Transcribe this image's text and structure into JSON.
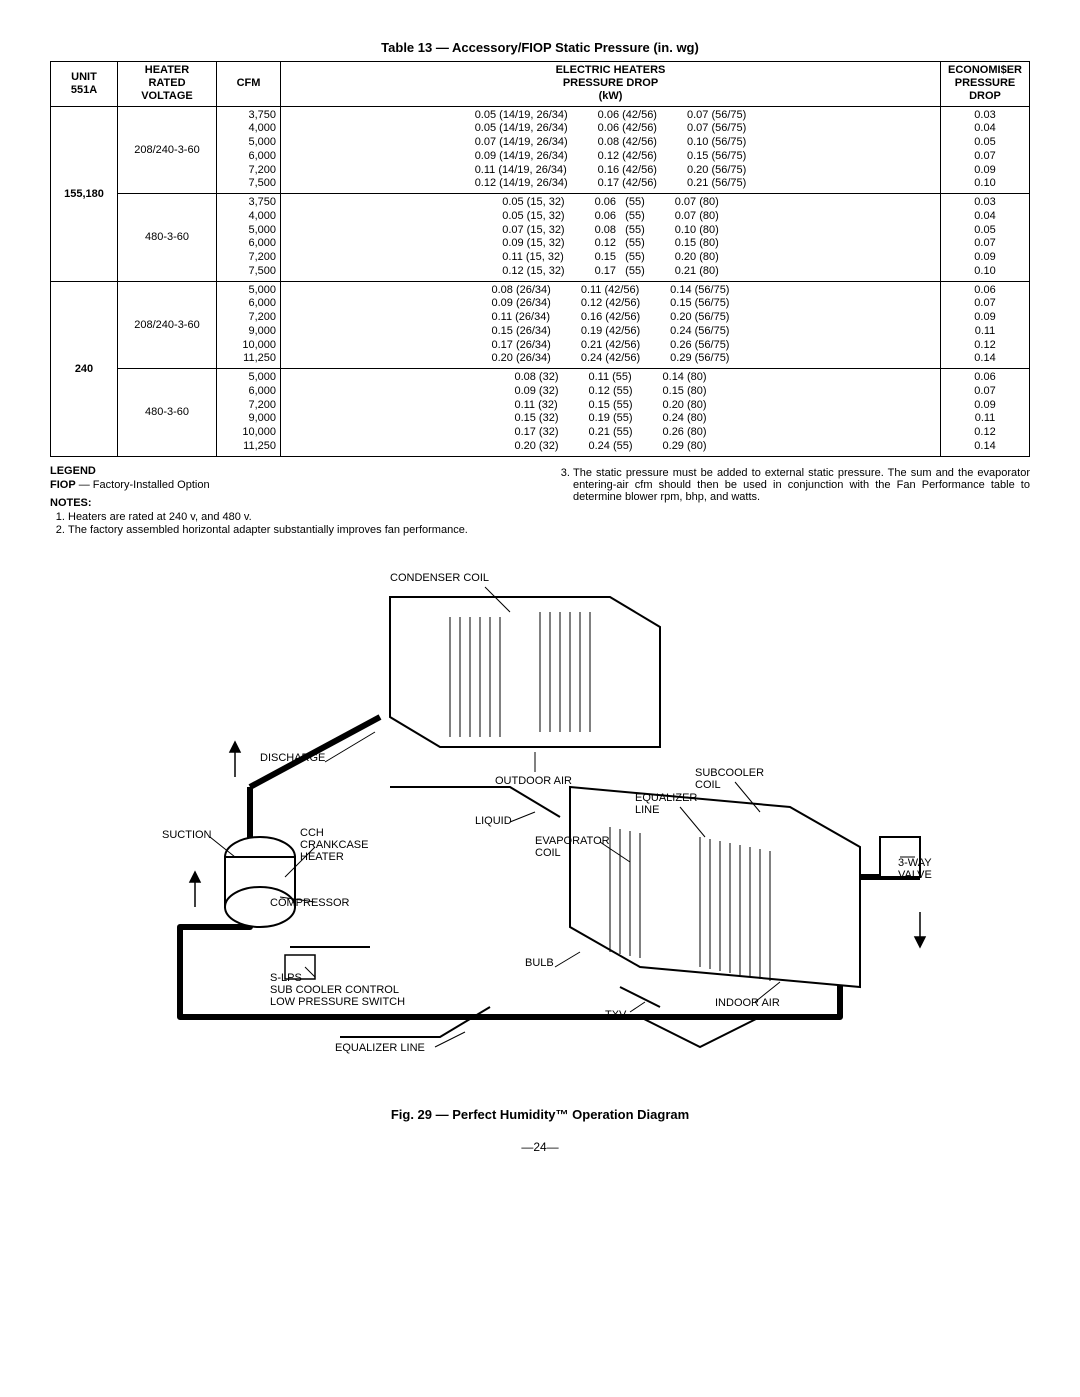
{
  "table": {
    "title": "Table 13 — Accessory/FIOP Static Pressure (in. wg)",
    "headers": {
      "unit": "UNIT\n551A",
      "heater_voltage": "HEATER\nRATED\nVOLTAGE",
      "cfm": "CFM",
      "electric_heaters": "ELECTRIC HEATERS\nPRESSURE DROP\n(kW)",
      "economiser": "ECONOMI$ER\nPRESSURE\nDROP"
    },
    "groups": [
      {
        "unit": "155,180",
        "blocks": [
          {
            "voltage": "208/240-3-60",
            "rows": [
              {
                "cfm": "3,750",
                "pd": [
                  "0.05 (14/19, 26/34)",
                  "0.06 (42/56)",
                  "0.07 (56/75)"
                ],
                "econ": "0.03"
              },
              {
                "cfm": "4,000",
                "pd": [
                  "0.05 (14/19, 26/34)",
                  "0.06 (42/56)",
                  "0.07 (56/75)"
                ],
                "econ": "0.04"
              },
              {
                "cfm": "5,000",
                "pd": [
                  "0.07 (14/19, 26/34)",
                  "0.08 (42/56)",
                  "0.10 (56/75)"
                ],
                "econ": "0.05"
              },
              {
                "cfm": "6,000",
                "pd": [
                  "0.09 (14/19, 26/34)",
                  "0.12 (42/56)",
                  "0.15 (56/75)"
                ],
                "econ": "0.07"
              },
              {
                "cfm": "7,200",
                "pd": [
                  "0.11 (14/19, 26/34)",
                  "0.16 (42/56)",
                  "0.20 (56/75)"
                ],
                "econ": "0.09"
              },
              {
                "cfm": "7,500",
                "pd": [
                  "0.12 (14/19, 26/34)",
                  "0.17 (42/56)",
                  "0.21 (56/75)"
                ],
                "econ": "0.10"
              }
            ]
          },
          {
            "voltage": "480-3-60",
            "rows": [
              {
                "cfm": "3,750",
                "pd": [
                  "0.05 (15, 32)",
                  "0.06   (55)",
                  "0.07 (80)"
                ],
                "econ": "0.03"
              },
              {
                "cfm": "4,000",
                "pd": [
                  "0.05 (15, 32)",
                  "0.06   (55)",
                  "0.07 (80)"
                ],
                "econ": "0.04"
              },
              {
                "cfm": "5,000",
                "pd": [
                  "0.07 (15, 32)",
                  "0.08   (55)",
                  "0.10 (80)"
                ],
                "econ": "0.05"
              },
              {
                "cfm": "6,000",
                "pd": [
                  "0.09 (15, 32)",
                  "0.12   (55)",
                  "0.15 (80)"
                ],
                "econ": "0.07"
              },
              {
                "cfm": "7,200",
                "pd": [
                  "0.11 (15, 32)",
                  "0.15   (55)",
                  "0.20 (80)"
                ],
                "econ": "0.09"
              },
              {
                "cfm": "7,500",
                "pd": [
                  "0.12 (15, 32)",
                  "0.17   (55)",
                  "0.21 (80)"
                ],
                "econ": "0.10"
              }
            ]
          }
        ]
      },
      {
        "unit": "240",
        "blocks": [
          {
            "voltage": "208/240-3-60",
            "rows": [
              {
                "cfm": "5,000",
                "pd": [
                  "0.08 (26/34)",
                  "0.11 (42/56)",
                  "0.14 (56/75)"
                ],
                "econ": "0.06"
              },
              {
                "cfm": "6,000",
                "pd": [
                  "0.09 (26/34)",
                  "0.12 (42/56)",
                  "0.15 (56/75)"
                ],
                "econ": "0.07"
              },
              {
                "cfm": "7,200",
                "pd": [
                  "0.11 (26/34)",
                  "0.16 (42/56)",
                  "0.20 (56/75)"
                ],
                "econ": "0.09"
              },
              {
                "cfm": "9,000",
                "pd": [
                  "0.15 (26/34)",
                  "0.19 (42/56)",
                  "0.24 (56/75)"
                ],
                "econ": "0.11"
              },
              {
                "cfm": "10,000",
                "pd": [
                  "0.17 (26/34)",
                  "0.21 (42/56)",
                  "0.26 (56/75)"
                ],
                "econ": "0.12"
              },
              {
                "cfm": "11,250",
                "pd": [
                  "0.20 (26/34)",
                  "0.24 (42/56)",
                  "0.29 (56/75)"
                ],
                "econ": "0.14"
              }
            ]
          },
          {
            "voltage": "480-3-60",
            "rows": [
              {
                "cfm": "5,000",
                "pd": [
                  "0.08 (32)",
                  "0.11 (55)",
                  "0.14 (80)"
                ],
                "econ": "0.06"
              },
              {
                "cfm": "6,000",
                "pd": [
                  "0.09 (32)",
                  "0.12 (55)",
                  "0.15 (80)"
                ],
                "econ": "0.07"
              },
              {
                "cfm": "7,200",
                "pd": [
                  "0.11 (32)",
                  "0.15 (55)",
                  "0.20 (80)"
                ],
                "econ": "0.09"
              },
              {
                "cfm": "9,000",
                "pd": [
                  "0.15 (32)",
                  "0.19 (55)",
                  "0.24 (80)"
                ],
                "econ": "0.11"
              },
              {
                "cfm": "10,000",
                "pd": [
                  "0.17 (32)",
                  "0.21 (55)",
                  "0.26 (80)"
                ],
                "econ": "0.12"
              },
              {
                "cfm": "11,250",
                "pd": [
                  "0.20 (32)",
                  "0.24 (55)",
                  "0.29 (80)"
                ],
                "econ": "0.14"
              }
            ]
          }
        ]
      }
    ]
  },
  "legend": {
    "heading": "LEGEND",
    "fiop_label": "FIOP",
    "fiop_sep": " — ",
    "fiop_desc": "Factory-Installed Option",
    "notes_heading": "NOTES:",
    "notes": [
      "Heaters are rated at 240 v, and 480 v.",
      "The factory assembled horizontal adapter substantially improves fan performance.",
      "The static pressure must be added to external static pressure. The sum and the evaporator entering-air cfm should then be used in conjunction with the Fan Performance table to determine blower rpm, bhp, and watts."
    ]
  },
  "diagram": {
    "labels": {
      "condenser": "CONDENSER COIL",
      "discharge": "DISCHARGE",
      "outdoor_air": "OUTDOOR AIR",
      "suction": "SUCTION",
      "cch": "CCH\nCRANKCASE\nHEATER",
      "liquid": "LIQUID",
      "subcooler": "SUBCOOLER\nCOIL",
      "equalizer_line_top": "EQUALIZER\nLINE",
      "evaporator": "EVAPORATOR\nCOIL",
      "three_way": "3-WAY\nVALVE",
      "compressor": "COMPRESSOR",
      "bulb": "BULB",
      "slps": "S-LPS\nSUB COOLER CONTROL\nLOW PRESSURE SWITCH",
      "txv": "TXV",
      "indoor_air": "INDOOR AIR",
      "equalizer_line_bottom": "EQUALIZER LINE"
    },
    "caption": "Fig. 29 — Perfect Humidity™ Operation Diagram"
  },
  "page_number": "—24—"
}
